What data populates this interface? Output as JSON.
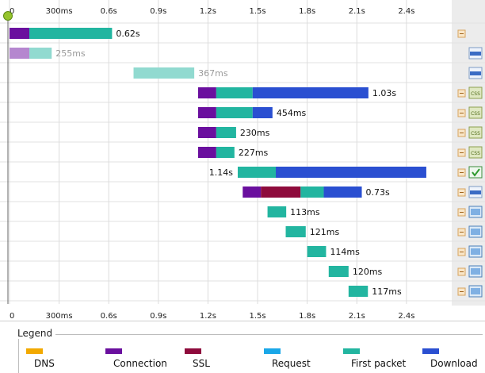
{
  "chart_data": {
    "type": "waterfall",
    "x_ticks": [
      "0",
      "300ms",
      "0.6s",
      "0.9s",
      "1.2s",
      "1.5s",
      "1.8s",
      "2.1s",
      "2.4s"
    ],
    "x_tick_values": [
      0,
      0.3,
      0.6,
      0.9,
      1.2,
      1.5,
      1.8,
      2.1,
      2.4
    ],
    "xlim": [
      0,
      2.62
    ],
    "grid": true,
    "phase_colors": {
      "connection": "#6a0f9e",
      "ssl": "#8e0b3c",
      "first_packet": "#22b5a0",
      "download": "#2a4fd1"
    },
    "rows": [
      {
        "label": "0.62s",
        "label_side": "right",
        "faded": false,
        "icon": "collapse-icon",
        "type_icon": "generic-icon",
        "segments": [
          {
            "phase": "connection",
            "start": 0.0,
            "end": 0.12
          },
          {
            "phase": "first_packet",
            "start": 0.12,
            "end": 0.62
          }
        ]
      },
      {
        "label": "255ms",
        "label_side": "right",
        "faded": true,
        "icon": "",
        "type_icon": "html-icon",
        "segments": [
          {
            "phase": "connection",
            "start": 0.0,
            "end": 0.12
          },
          {
            "phase": "first_packet",
            "start": 0.12,
            "end": 0.255
          }
        ]
      },
      {
        "label": "367ms",
        "label_side": "right",
        "faded": true,
        "icon": "",
        "type_icon": "html-icon",
        "segments": [
          {
            "phase": "first_packet",
            "start": 0.75,
            "end": 1.117
          }
        ]
      },
      {
        "label": "1.03s",
        "label_side": "right",
        "faded": false,
        "icon": "collapse-icon",
        "type_icon": "css-icon",
        "segments": [
          {
            "phase": "connection",
            "start": 1.14,
            "end": 1.25
          },
          {
            "phase": "first_packet",
            "start": 1.25,
            "end": 1.47
          },
          {
            "phase": "download",
            "start": 1.47,
            "end": 2.17
          }
        ]
      },
      {
        "label": "454ms",
        "label_side": "right",
        "faded": false,
        "icon": "collapse-icon",
        "type_icon": "css-icon",
        "segments": [
          {
            "phase": "connection",
            "start": 1.14,
            "end": 1.25
          },
          {
            "phase": "first_packet",
            "start": 1.25,
            "end": 1.47
          },
          {
            "phase": "download",
            "start": 1.47,
            "end": 1.59
          }
        ]
      },
      {
        "label": "230ms",
        "label_side": "right",
        "faded": false,
        "icon": "collapse-icon",
        "type_icon": "css-icon",
        "segments": [
          {
            "phase": "connection",
            "start": 1.14,
            "end": 1.25
          },
          {
            "phase": "first_packet",
            "start": 1.25,
            "end": 1.37
          }
        ]
      },
      {
        "label": "227ms",
        "label_side": "right",
        "faded": false,
        "icon": "collapse-icon",
        "type_icon": "css-icon",
        "segments": [
          {
            "phase": "connection",
            "start": 1.14,
            "end": 1.25
          },
          {
            "phase": "first_packet",
            "start": 1.25,
            "end": 1.36
          }
        ]
      },
      {
        "label": "1.14s",
        "label_side": "left",
        "faded": false,
        "icon": "collapse-icon",
        "type_icon": "script-icon",
        "segments": [
          {
            "phase": "first_packet",
            "start": 1.38,
            "end": 1.61
          },
          {
            "phase": "download",
            "start": 1.61,
            "end": 2.52
          }
        ]
      },
      {
        "label": "0.73s",
        "label_side": "right",
        "faded": false,
        "icon": "collapse-icon",
        "type_icon": "html-icon",
        "segments": [
          {
            "phase": "connection",
            "start": 1.41,
            "end": 1.52
          },
          {
            "phase": "ssl",
            "start": 1.52,
            "end": 1.76
          },
          {
            "phase": "first_packet",
            "start": 1.76,
            "end": 1.9
          },
          {
            "phase": "download",
            "start": 1.9,
            "end": 2.13
          }
        ]
      },
      {
        "label": "113ms",
        "label_side": "right",
        "faded": false,
        "icon": "collapse-icon",
        "type_icon": "image-icon",
        "segments": [
          {
            "phase": "first_packet",
            "start": 1.56,
            "end": 1.673
          }
        ]
      },
      {
        "label": "121ms",
        "label_side": "right",
        "faded": false,
        "icon": "collapse-icon",
        "type_icon": "image-icon",
        "segments": [
          {
            "phase": "first_packet",
            "start": 1.67,
            "end": 1.791
          }
        ]
      },
      {
        "label": "114ms",
        "label_side": "right",
        "faded": false,
        "icon": "collapse-icon",
        "type_icon": "image-icon",
        "segments": [
          {
            "phase": "first_packet",
            "start": 1.8,
            "end": 1.914
          }
        ]
      },
      {
        "label": "120ms",
        "label_side": "right",
        "faded": false,
        "icon": "collapse-icon",
        "type_icon": "image-icon",
        "segments": [
          {
            "phase": "first_packet",
            "start": 1.93,
            "end": 2.05
          }
        ]
      },
      {
        "label": "117ms",
        "label_side": "right",
        "faded": false,
        "icon": "collapse-icon",
        "type_icon": "image-icon",
        "segments": [
          {
            "phase": "first_packet",
            "start": 2.05,
            "end": 2.167
          }
        ]
      }
    ]
  },
  "legend": {
    "title": "Legend",
    "items": [
      {
        "label": "DNS",
        "color": "#f2a900"
      },
      {
        "label": "Connection",
        "color": "#6a0f9e"
      },
      {
        "label": "SSL",
        "color": "#8e0b3c"
      },
      {
        "label": "Request",
        "color": "#1aa7e8"
      },
      {
        "label": "First packet",
        "color": "#22b5a0"
      },
      {
        "label": "Download",
        "color": "#2a4fd1"
      }
    ]
  }
}
